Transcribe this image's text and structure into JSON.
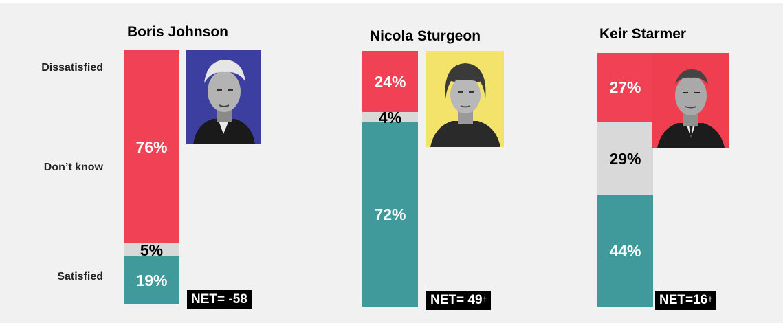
{
  "row_labels": {
    "dissatisfied": "Dissatisfied",
    "dont_know": "Don’t know",
    "satisfied": "Satisfied"
  },
  "colors": {
    "dissatisfied": "#f04155",
    "dont_know": "#d9d9d9",
    "satisfied": "#40999a"
  },
  "candidates": [
    {
      "name": "Boris Johnson",
      "dissatisfied_label": "76%",
      "dont_know_label": "5%",
      "satisfied_label": "19%",
      "net_label": "NET= -58",
      "net_mark": "",
      "photo_bg": "#3d3fa0",
      "photo_icon": "portrait-photo"
    },
    {
      "name": "Nicola Sturgeon",
      "dissatisfied_label": "24%",
      "dont_know_label": "4%",
      "satisfied_label": "72%",
      "net_label": "NET= 49",
      "net_mark": "†",
      "photo_bg": "#f3e36a",
      "photo_icon": "portrait-photo"
    },
    {
      "name": "Keir Starmer",
      "dissatisfied_label": "27%",
      "dont_know_label": "29%",
      "satisfied_label": "44%",
      "net_label": "NET=16",
      "net_mark": "†",
      "photo_bg": "#ef3e50",
      "photo_icon": "portrait-photo"
    }
  ],
  "chart_data": {
    "type": "bar",
    "stacked": true,
    "categories": [
      "Boris Johnson",
      "Nicola Sturgeon",
      "Keir Starmer"
    ],
    "series": [
      {
        "name": "Dissatisfied",
        "values": [
          76,
          24,
          27
        ]
      },
      {
        "name": "Don’t know",
        "values": [
          5,
          4,
          29
        ]
      },
      {
        "name": "Satisfied",
        "values": [
          19,
          72,
          44
        ]
      }
    ],
    "net": [
      -58,
      49,
      16
    ],
    "ylim": [
      0,
      100
    ]
  }
}
